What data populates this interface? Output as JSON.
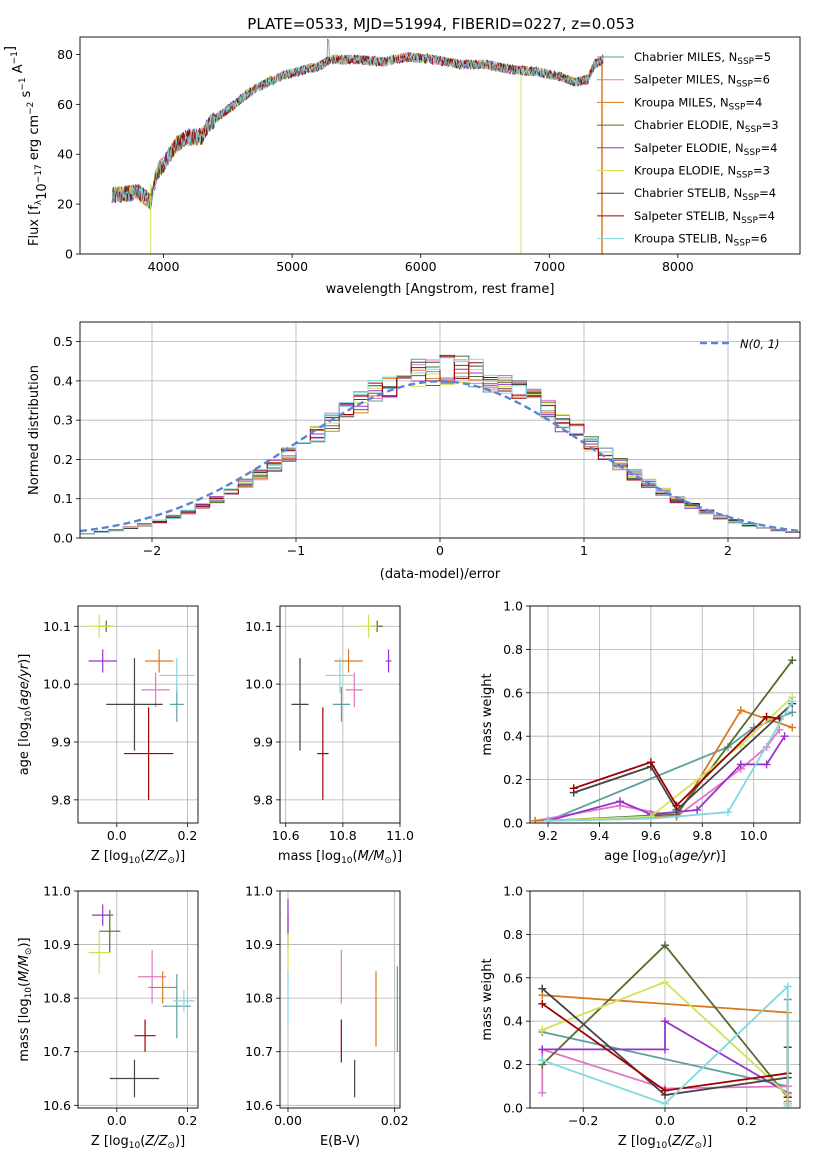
{
  "title": "PLATE=0533, MJD=51994, FIBERID=0227, z=0.053",
  "colors": {
    "Chabrier MILES": "#5f9ea0",
    "Salpeter MILES": "#e377c2",
    "Kroupa MILES": "#d97a20",
    "Chabrier ELODIE": "#556b2f",
    "Salpeter ELODIE": "#9932cc",
    "Kroupa ELODIE": "#d4e157",
    "Chabrier STELIB": "#444444",
    "Salpeter STELIB": "#a00000",
    "Kroupa STELIB": "#80d8e0",
    "gauss": "#5b84d6"
  },
  "chart_data": [
    {
      "id": "spectrum",
      "type": "line",
      "xlabel": "wavelength [Angstrom, rest frame]",
      "ylabel_prefix": "Flux [f",
      "xlim": [
        3350,
        8950
      ],
      "ylim": [
        0,
        87
      ],
      "xticks": [
        "4000",
        "5000",
        "6000",
        "7000",
        "8000"
      ],
      "yticks": [
        "0",
        "20",
        "40",
        "60",
        "80"
      ],
      "continuum": [
        [
          3600,
          24
        ],
        [
          3700,
          24
        ],
        [
          3800,
          25
        ],
        [
          3900,
          21
        ],
        [
          3950,
          33
        ],
        [
          4000,
          36
        ],
        [
          4100,
          44
        ],
        [
          4200,
          47
        ],
        [
          4300,
          47
        ],
        [
          4350,
          52
        ],
        [
          4500,
          58
        ],
        [
          4700,
          66
        ],
        [
          4900,
          71
        ],
        [
          5100,
          74
        ],
        [
          5200,
          75
        ],
        [
          5300,
          78
        ],
        [
          5500,
          78
        ],
        [
          5700,
          77
        ],
        [
          5900,
          79
        ],
        [
          6100,
          78
        ],
        [
          6300,
          76
        ],
        [
          6500,
          76
        ],
        [
          6700,
          74
        ],
        [
          6900,
          73
        ],
        [
          7100,
          71
        ],
        [
          7200,
          69
        ],
        [
          7300,
          70
        ],
        [
          7350,
          76
        ],
        [
          7420,
          78
        ]
      ],
      "legend": [
        {
          "label": "Chabrier MILES, N",
          "n": "5"
        },
        {
          "label": "Salpeter MILES, N",
          "n": "6"
        },
        {
          "label": "Kroupa MILES, N",
          "n": "4"
        },
        {
          "label": "Chabrier ELODIE, N",
          "n": "3"
        },
        {
          "label": "Salpeter ELODIE, N",
          "n": "4"
        },
        {
          "label": "Kroupa ELODIE, N",
          "n": "3"
        },
        {
          "label": "Chabrier STELIB, N",
          "n": "4"
        },
        {
          "label": "Salpeter STELIB, N",
          "n": "4"
        },
        {
          "label": "Kroupa STELIB, N",
          "n": "6"
        }
      ]
    },
    {
      "id": "residuals",
      "type": "histogram",
      "xlabel": "(data-model)/error",
      "ylabel": "Normed distribution",
      "xlim": [
        -2.5,
        2.5
      ],
      "ylim": [
        0,
        0.55
      ],
      "xticks": [
        "−2",
        "−1",
        "0",
        "1",
        "2"
      ],
      "yticks": [
        "0.0",
        "0.1",
        "0.2",
        "0.3",
        "0.4",
        "0.5"
      ],
      "legend": "N(0, 1)",
      "bin_width": 0.1,
      "bin_start": -2.5
    },
    {
      "id": "age_vs_Z",
      "type": "errorbar",
      "xlabel": "Z [log",
      "ylabel": "age  [log",
      "xlim": [
        -0.11,
        0.23
      ],
      "ylim": [
        9.76,
        10.135
      ],
      "xticks": [
        "0.0",
        "0.2"
      ],
      "yticks": [
        "9.8",
        "9.9",
        "10.0",
        "10.1"
      ],
      "points": [
        {
          "name": "Chabrier MILES",
          "x": 0.17,
          "y": 9.965,
          "xe": 0.02,
          "ye": 0.03
        },
        {
          "name": "Salpeter MILES",
          "x": 0.11,
          "y": 9.99,
          "xe": 0.04,
          "ye": 0.03
        },
        {
          "name": "Kroupa MILES",
          "x": 0.12,
          "y": 10.04,
          "xe": 0.04,
          "ye": 0.02
        },
        {
          "name": "Chabrier ELODIE",
          "x": -0.03,
          "y": 10.1,
          "xe": 0.02,
          "ye": 0.01
        },
        {
          "name": "Salpeter ELODIE",
          "x": -0.04,
          "y": 10.04,
          "xe": 0.04,
          "ye": 0.02
        },
        {
          "name": "Kroupa ELODIE",
          "x": -0.05,
          "y": 10.1,
          "xe": 0.04,
          "ye": 0.02
        },
        {
          "name": "Chabrier STELIB",
          "x": 0.05,
          "y": 9.965,
          "xe": 0.08,
          "ye": 0.08
        },
        {
          "name": "Salpeter STELIB",
          "x": 0.09,
          "y": 9.88,
          "xe": 0.07,
          "ye": 0.08
        },
        {
          "name": "Kroupa STELIB",
          "x": 0.17,
          "y": 10.015,
          "xe": 0.05,
          "ye": 0.03
        }
      ]
    },
    {
      "id": "age_vs_mass",
      "type": "errorbar",
      "xlabel": "mass [log",
      "xlim": [
        10.58,
        11.0
      ],
      "ylim": [
        9.76,
        10.135
      ],
      "xticks": [
        "10.6",
        "10.8",
        "11.0"
      ],
      "yticks": [
        "9.8",
        "9.9",
        "10.0",
        "10.1"
      ],
      "points": [
        {
          "name": "Chabrier MILES",
          "x": 10.795,
          "y": 9.965,
          "xe": 0.03,
          "ye": 0.03
        },
        {
          "name": "Salpeter MILES",
          "x": 10.84,
          "y": 9.99,
          "xe": 0.03,
          "ye": 0.03
        },
        {
          "name": "Kroupa MILES",
          "x": 10.82,
          "y": 10.04,
          "xe": 0.05,
          "ye": 0.02
        },
        {
          "name": "Chabrier ELODIE",
          "x": 10.92,
          "y": 10.1,
          "xe": 0.02,
          "ye": 0.01
        },
        {
          "name": "Salpeter ELODIE",
          "x": 10.96,
          "y": 10.04,
          "xe": 0.01,
          "ye": 0.02
        },
        {
          "name": "Kroupa ELODIE",
          "x": 10.89,
          "y": 10.1,
          "xe": 0.03,
          "ye": 0.02
        },
        {
          "name": "Chabrier STELIB",
          "x": 10.65,
          "y": 9.965,
          "xe": 0.03,
          "ye": 0.08
        },
        {
          "name": "Salpeter STELIB",
          "x": 10.73,
          "y": 9.88,
          "xe": 0.02,
          "ye": 0.08
        },
        {
          "name": "Kroupa STELIB",
          "x": 10.79,
          "y": 10.015,
          "xe": 0.05,
          "ye": 0.03
        }
      ]
    },
    {
      "id": "mass_weight_vs_age",
      "type": "line",
      "xlabel": "age  [log",
      "ylabel": "mass weight",
      "xlim": [
        9.13,
        10.18
      ],
      "ylim": [
        0,
        1
      ],
      "xticks": [
        "9.2",
        "9.4",
        "9.6",
        "9.8",
        "10.0"
      ],
      "yticks": [
        "0.0",
        "0.2",
        "0.4",
        "0.6",
        "0.8",
        "1.0"
      ],
      "series": [
        {
          "name": "Chabrier MILES",
          "x": [
            9.2,
            9.9,
            10.0,
            10.15
          ],
          "y": [
            0.01,
            0.35,
            0.44,
            0.51
          ]
        },
        {
          "name": "Salpeter MILES",
          "x": [
            9.15,
            9.48,
            9.7,
            9.95,
            10.05,
            10.1
          ],
          "y": [
            0.01,
            0.08,
            0.03,
            0.25,
            0.35,
            0.43
          ]
        },
        {
          "name": "Kroupa MILES",
          "x": [
            9.15,
            9.7,
            9.95,
            10.15
          ],
          "y": [
            0.01,
            0.03,
            0.52,
            0.44
          ]
        },
        {
          "name": "Chabrier ELODIE",
          "x": [
            9.2,
            9.7,
            10.15
          ],
          "y": [
            0.01,
            0.04,
            0.75
          ]
        },
        {
          "name": "Salpeter ELODIE",
          "x": [
            9.2,
            9.48,
            9.6,
            9.78,
            9.95,
            10.05,
            10.12
          ],
          "y": [
            0.01,
            0.1,
            0.04,
            0.06,
            0.27,
            0.27,
            0.4
          ]
        },
        {
          "name": "Kroupa ELODIE",
          "x": [
            9.2,
            9.6,
            9.95,
            10.15
          ],
          "y": [
            0.01,
            0.03,
            0.36,
            0.58
          ]
        },
        {
          "name": "Chabrier STELIB",
          "x": [
            9.3,
            9.6,
            9.7,
            10.15
          ],
          "y": [
            0.14,
            0.26,
            0.06,
            0.55
          ]
        },
        {
          "name": "Salpeter STELIB",
          "x": [
            9.3,
            9.6,
            9.7,
            10.05,
            10.1
          ],
          "y": [
            0.16,
            0.28,
            0.08,
            0.49,
            0.48
          ]
        },
        {
          "name": "Kroupa STELIB",
          "x": [
            9.2,
            9.6,
            9.9,
            10.15
          ],
          "y": [
            0.01,
            0.02,
            0.05,
            0.56
          ]
        }
      ]
    },
    {
      "id": "mass_vs_Z",
      "type": "errorbar",
      "xlabel": "Z [log",
      "ylabel": "mass [log",
      "xlim": [
        -0.11,
        0.23
      ],
      "ylim": [
        10.595,
        11.0
      ],
      "xticks": [
        "0.0",
        "0.2"
      ],
      "yticks": [
        "10.6",
        "10.7",
        "10.8",
        "10.9",
        "11.0"
      ],
      "points": [
        {
          "name": "Chabrier MILES",
          "x": 0.17,
          "y": 10.785,
          "xe": 0.04,
          "ye": 0.06
        },
        {
          "name": "Salpeter MILES",
          "x": 0.1,
          "y": 10.84,
          "xe": 0.04,
          "ye": 0.05
        },
        {
          "name": "Kroupa MILES",
          "x": 0.13,
          "y": 10.82,
          "xe": 0.04,
          "ye": 0.03
        },
        {
          "name": "Chabrier ELODIE",
          "x": -0.02,
          "y": 10.925,
          "xe": 0.03,
          "ye": 0.04
        },
        {
          "name": "Salpeter ELODIE",
          "x": -0.04,
          "y": 10.955,
          "xe": 0.03,
          "ye": 0.02
        },
        {
          "name": "Kroupa ELODIE",
          "x": -0.05,
          "y": 10.885,
          "xe": 0.03,
          "ye": 0.04
        },
        {
          "name": "Chabrier STELIB",
          "x": 0.05,
          "y": 10.65,
          "xe": 0.07,
          "ye": 0.035
        },
        {
          "name": "Salpeter STELIB",
          "x": 0.08,
          "y": 10.73,
          "xe": 0.03,
          "ye": 0.03
        },
        {
          "name": "Kroupa STELIB",
          "x": 0.19,
          "y": 10.795,
          "xe": 0.03,
          "ye": 0.02
        }
      ]
    },
    {
      "id": "mass_vs_ebv",
      "type": "errorbar",
      "xlabel": "E(B-V)",
      "xlim": [
        -0.0015,
        0.021
      ],
      "ylim": [
        10.595,
        11.0
      ],
      "xticks": [
        "0.00",
        "0.02"
      ],
      "yticks": [
        "10.6",
        "10.7",
        "10.8",
        "10.9",
        "11.0"
      ],
      "points": [
        {
          "name": "Chabrier MILES",
          "x": 0.0205,
          "y": 10.78,
          "xe": 0,
          "ye": 0.08
        },
        {
          "name": "Salpeter MILES",
          "x": 0.01,
          "y": 10.84,
          "xe": 0,
          "ye": 0.05
        },
        {
          "name": "Kroupa MILES",
          "x": 0.0165,
          "y": 10.78,
          "xe": 0,
          "ye": 0.07
        },
        {
          "name": "Chabrier ELODIE",
          "x": 0.0,
          "y": 10.925,
          "xe": 0,
          "ye": 0.03
        },
        {
          "name": "Salpeter ELODIE",
          "x": 0.0,
          "y": 10.955,
          "xe": 0,
          "ye": 0.03
        },
        {
          "name": "Kroupa ELODIE",
          "x": 0.0,
          "y": 10.88,
          "xe": 0,
          "ye": 0.04
        },
        {
          "name": "Chabrier STELIB",
          "x": 0.0125,
          "y": 10.65,
          "xe": 0,
          "ye": 0.035
        },
        {
          "name": "Salpeter STELIB",
          "x": 0.01,
          "y": 10.72,
          "xe": 0,
          "ye": 0.04
        },
        {
          "name": "Kroupa STELIB",
          "x": 0.0,
          "y": 10.8,
          "xe": 0,
          "ye": 0.05
        }
      ]
    },
    {
      "id": "mass_weight_vs_Z",
      "type": "line",
      "xlabel": "Z [log",
      "ylabel": "mass weight",
      "xlim": [
        -0.33,
        0.33
      ],
      "ylim": [
        0,
        1
      ],
      "xticks": [
        "−0.2",
        "0.0",
        "0.2"
      ],
      "yticks": [
        "0.0",
        "0.2",
        "0.4",
        "0.6",
        "0.8",
        "1.0"
      ],
      "series": [
        {
          "name": "Chabrier MILES",
          "x": [
            -0.3,
            0.3,
            0.3
          ],
          "y": [
            0.35,
            0.1,
            0.5
          ]
        },
        {
          "name": "Salpeter MILES",
          "x": [
            -0.3,
            -0.3,
            0.0,
            0.3,
            0.3
          ],
          "y": [
            0.07,
            0.27,
            0.09,
            0.1,
            0.02
          ]
        },
        {
          "name": "Kroupa MILES",
          "x": [
            -0.3,
            0.3,
            0.3
          ],
          "y": [
            0.52,
            0.44,
            0.03
          ]
        },
        {
          "name": "Chabrier ELODIE",
          "x": [
            -0.3,
            0.0,
            0.3,
            0.3
          ],
          "y": [
            0.2,
            0.75,
            0.05,
            0.02
          ]
        },
        {
          "name": "Salpeter ELODIE",
          "x": [
            -0.3,
            0.0,
            0.0,
            0.3
          ],
          "y": [
            0.27,
            0.27,
            0.4,
            0.07
          ]
        },
        {
          "name": "Kroupa ELODIE",
          "x": [
            -0.3,
            0.0,
            0.3,
            0.3
          ],
          "y": [
            0.36,
            0.58,
            0.06,
            0.02
          ]
        },
        {
          "name": "Chabrier STELIB",
          "x": [
            -0.3,
            0.0,
            0.3,
            0.3
          ],
          "y": [
            0.55,
            0.06,
            0.14,
            0.28
          ]
        },
        {
          "name": "Salpeter STELIB",
          "x": [
            -0.3,
            0.0,
            0.3,
            0.3
          ],
          "y": [
            0.48,
            0.08,
            0.16,
            0.05
          ]
        },
        {
          "name": "Kroupa STELIB",
          "x": [
            -0.3,
            0.0,
            0.3,
            0.3
          ],
          "y": [
            0.22,
            0.02,
            0.56,
            0.01
          ]
        }
      ]
    }
  ]
}
